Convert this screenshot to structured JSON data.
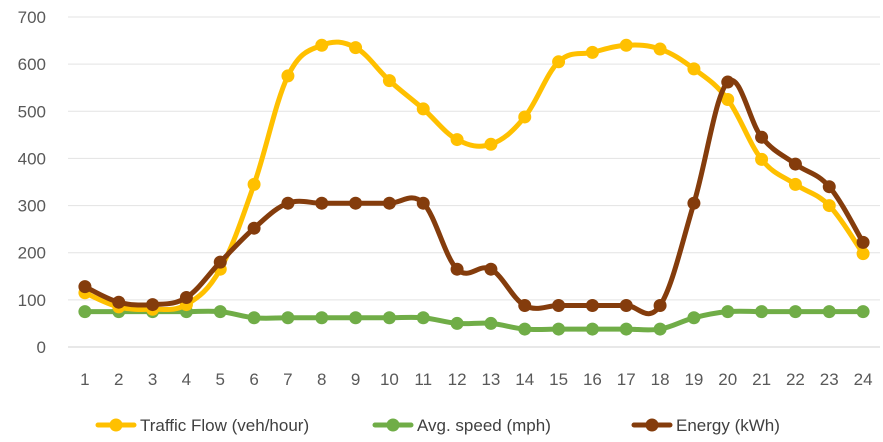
{
  "chart_data": {
    "type": "line",
    "title": "",
    "xlabel": "",
    "ylabel": "",
    "x": [
      1,
      2,
      3,
      4,
      5,
      6,
      7,
      8,
      9,
      10,
      11,
      12,
      13,
      14,
      15,
      16,
      17,
      18,
      19,
      20,
      21,
      22,
      23,
      24
    ],
    "x_ticks": [
      "1",
      "2",
      "3",
      "4",
      "5",
      "6",
      "7",
      "8",
      "9",
      "10",
      "11",
      "12",
      "13",
      "14",
      "15",
      "16",
      "17",
      "18",
      "19",
      "20",
      "21",
      "22",
      "23",
      "24"
    ],
    "ylim": [
      0,
      700
    ],
    "y_ticks": [
      "0",
      "100",
      "200",
      "300",
      "400",
      "500",
      "600",
      "700"
    ],
    "grid": "horizontal",
    "legend": "bottom",
    "series": [
      {
        "name": "Traffic Flow (veh/hour)",
        "color": "#FFC000",
        "values": [
          115,
          85,
          80,
          90,
          165,
          345,
          575,
          640,
          635,
          565,
          505,
          440,
          430,
          488,
          605,
          625,
          640,
          632,
          590,
          525,
          398,
          345,
          300,
          198
        ]
      },
      {
        "name": "Avg. speed (mph)",
        "color": "#70AD47",
        "values": [
          75,
          75,
          75,
          75,
          75,
          62,
          62,
          62,
          62,
          62,
          62,
          50,
          50,
          38,
          38,
          38,
          38,
          38,
          62,
          75,
          75,
          75,
          75,
          75
        ]
      },
      {
        "name": "Energy (kWh)",
        "color": "#843C0C",
        "values": [
          128,
          95,
          90,
          105,
          180,
          252,
          305,
          305,
          305,
          305,
          305,
          165,
          165,
          88,
          88,
          88,
          88,
          88,
          305,
          562,
          445,
          388,
          340,
          222
        ]
      }
    ]
  }
}
